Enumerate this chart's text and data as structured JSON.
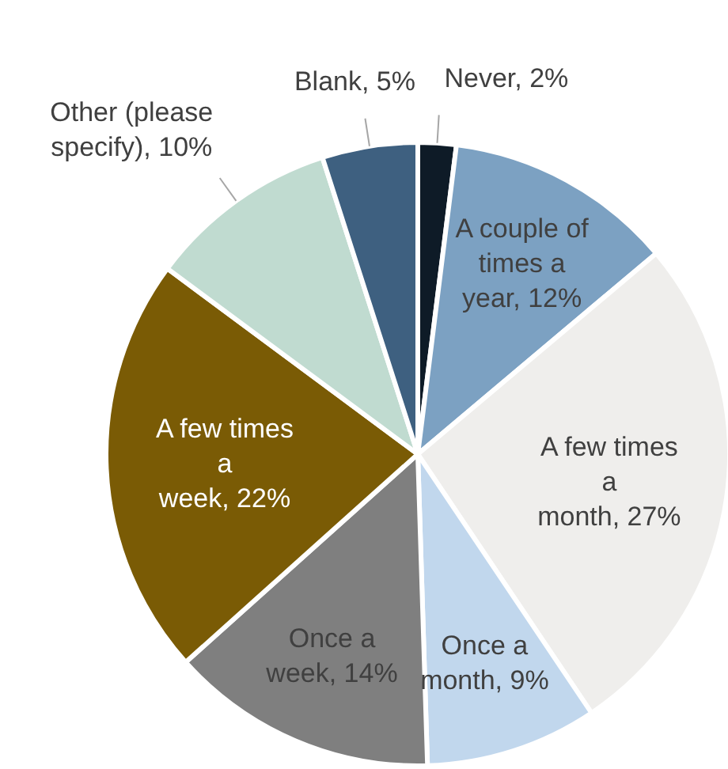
{
  "chart_data": {
    "type": "pie",
    "categories": [
      "Never",
      "A couple of times a year",
      "A few times a month",
      "Once a month",
      "Once a week",
      "A few times a week",
      "Other (please specify)",
      "Blank"
    ],
    "values": [
      2,
      12,
      27,
      9,
      14,
      22,
      10,
      5
    ],
    "colors": [
      "#0e1b27",
      "#7ca1c2",
      "#efeeec",
      "#c1d7ed",
      "#7f7f7f",
      "#7a5b05",
      "#c0dbd0",
      "#3e6080"
    ],
    "value_labels": [
      "2%",
      "12%",
      "27%",
      "9%",
      "14%",
      "22%",
      "10%",
      "5%"
    ]
  }
}
